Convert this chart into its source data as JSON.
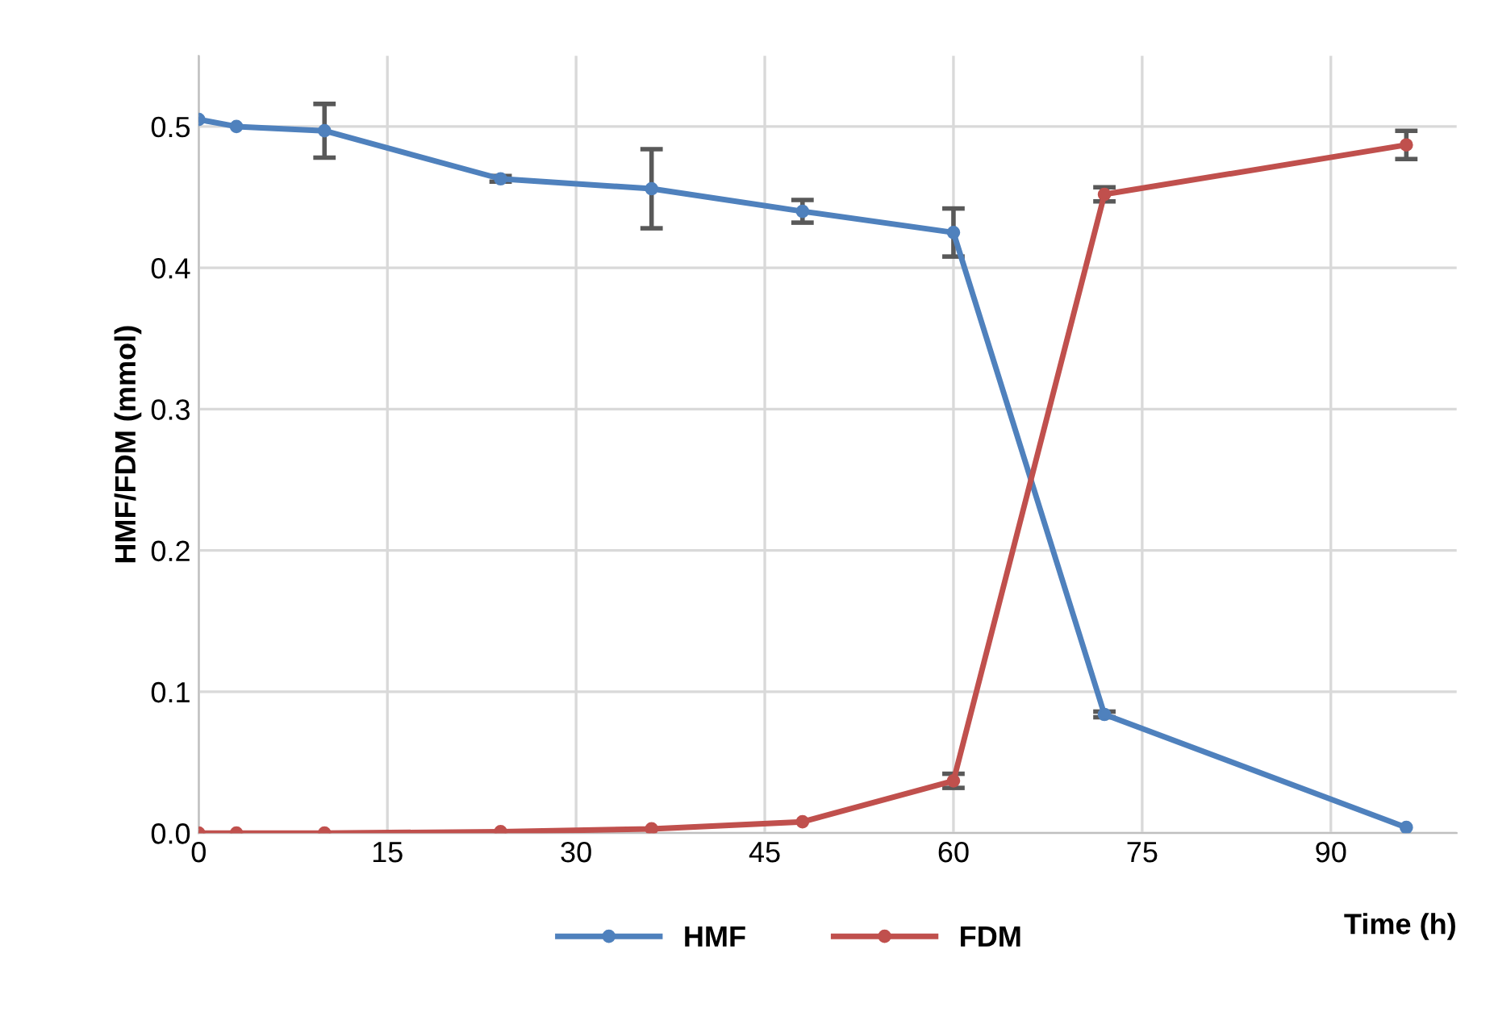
{
  "chart_data": {
    "type": "line",
    "xlabel": "Time (h)",
    "ylabel": "HMF/FDM (mmol)",
    "x": [
      0,
      3,
      10,
      24,
      36,
      48,
      60,
      72,
      96
    ],
    "series": [
      {
        "name": "HMF",
        "color": "#4f81bd",
        "values": [
          0.505,
          0.5,
          0.497,
          0.463,
          0.456,
          0.44,
          0.425,
          0.084,
          0.004
        ],
        "errors": [
          null,
          null,
          0.019,
          0.002,
          0.028,
          0.008,
          0.017,
          0.002,
          null
        ]
      },
      {
        "name": "FDM",
        "color": "#c0504d",
        "values": [
          0,
          0,
          0,
          0.001,
          0.003,
          0.008,
          0.037,
          0.452,
          0.487
        ],
        "errors": [
          null,
          null,
          null,
          null,
          null,
          null,
          0.005,
          0.005,
          0.01
        ]
      }
    ],
    "xlim": [
      0,
      100
    ],
    "xticks": [
      0,
      15,
      30,
      45,
      60,
      75,
      90
    ],
    "ylim": [
      0,
      0.55
    ],
    "yticks": [
      {
        "value": 0,
        "label": "0.0"
      },
      {
        "value": 0.1,
        "label": "0.1"
      },
      {
        "value": 0.2,
        "label": "0.2"
      },
      {
        "value": 0.3,
        "label": "0.3"
      },
      {
        "value": 0.4,
        "label": "0.4"
      },
      {
        "value": 0.5,
        "label": "0.5"
      }
    ],
    "grid": true,
    "legend": "bottom",
    "marker": "circle",
    "line_style": "solid"
  }
}
